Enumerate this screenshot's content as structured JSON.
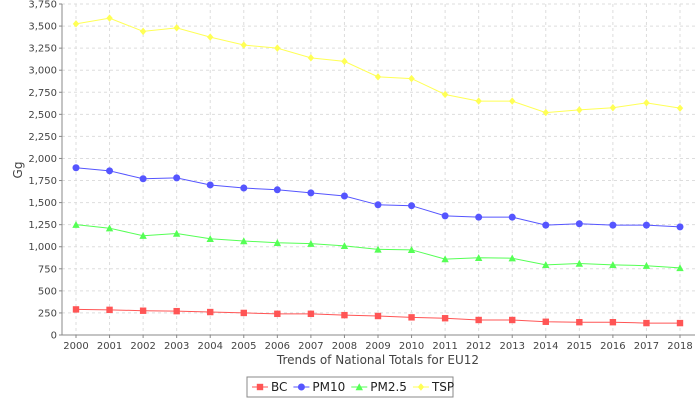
{
  "chart_data": {
    "type": "line",
    "title": "",
    "xlabel": "Trends of National Totals for EU12",
    "ylabel": "Gg",
    "x": [
      "2000",
      "2001",
      "2002",
      "2003",
      "2004",
      "2005",
      "2006",
      "2007",
      "2008",
      "2009",
      "2010",
      "2011",
      "2012",
      "2013",
      "2014",
      "2015",
      "2016",
      "2017",
      "2018"
    ],
    "ylim": [
      0,
      3750
    ],
    "yticks": [
      0,
      250,
      500,
      750,
      1000,
      1250,
      1500,
      1750,
      2000,
      2250,
      2500,
      2750,
      3000,
      3250,
      3500,
      3750
    ],
    "ytick_labels": [
      "0",
      "250",
      "500",
      "750",
      "1,000",
      "1,250",
      "1,500",
      "1,750",
      "2,000",
      "2,250",
      "2,500",
      "2,750",
      "3,000",
      "3,250",
      "3,500",
      "3,750"
    ],
    "grid": true,
    "legend_position": "bottom-center",
    "series": [
      {
        "name": "BC",
        "color": "#ff5555",
        "marker": "square",
        "values": [
          290,
          285,
          275,
          270,
          260,
          250,
          240,
          240,
          225,
          215,
          200,
          190,
          170,
          170,
          150,
          145,
          145,
          135,
          135
        ]
      },
      {
        "name": "PM10",
        "color": "#5555ff",
        "marker": "circle",
        "values": [
          1895,
          1860,
          1770,
          1780,
          1700,
          1665,
          1645,
          1610,
          1575,
          1475,
          1465,
          1350,
          1335,
          1335,
          1245,
          1260,
          1245,
          1245,
          1225
        ]
      },
      {
        "name": "PM2.5",
        "color": "#55ff55",
        "marker": "triangle",
        "values": [
          1250,
          1210,
          1125,
          1150,
          1090,
          1065,
          1045,
          1035,
          1010,
          970,
          965,
          860,
          875,
          870,
          795,
          810,
          795,
          785,
          760
        ]
      },
      {
        "name": "TSP",
        "color": "#ffff55",
        "marker": "diamond",
        "values": [
          3525,
          3590,
          3440,
          3480,
          3375,
          3285,
          3250,
          3140,
          3100,
          2925,
          2905,
          2725,
          2650,
          2650,
          2520,
          2550,
          2575,
          2630,
          2570
        ]
      }
    ]
  }
}
